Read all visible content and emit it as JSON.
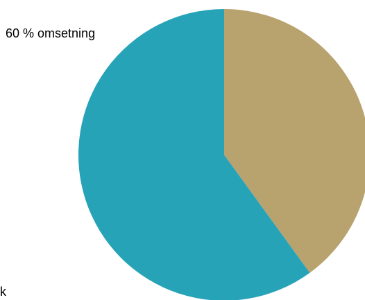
{
  "chart_data": {
    "type": "pie",
    "title": "",
    "start_angle_deg": 0,
    "direction": "clockwise",
    "slices": [
      {
        "label": "",
        "value": 40,
        "color": "#b8a26e"
      },
      {
        "label": "60 % omsetning",
        "value": 60,
        "color": "#27a3b8"
      }
    ],
    "visible_labels": {
      "top_left": "60 % omsetning",
      "bottom_left_fragment": "k"
    }
  }
}
